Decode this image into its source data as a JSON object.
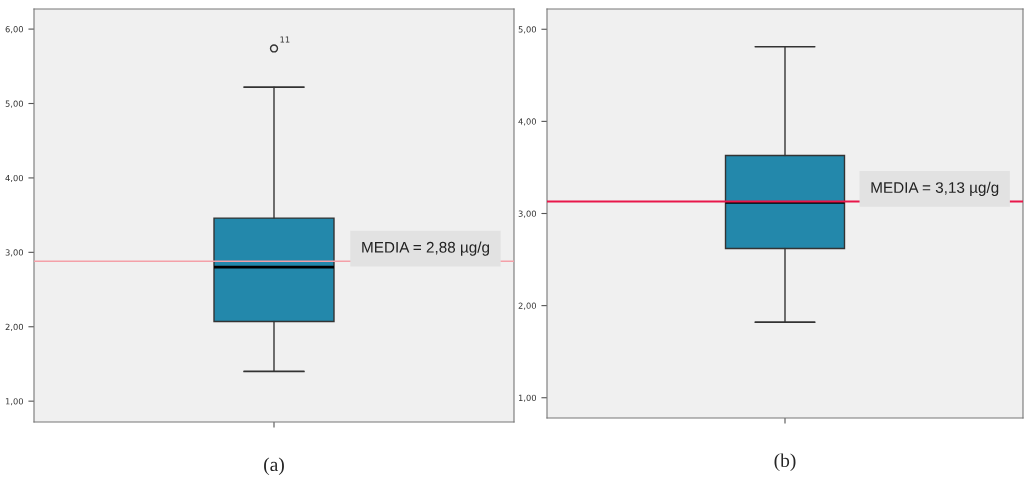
{
  "chart_data": [
    {
      "type": "box",
      "xlabel": "(a)",
      "categories": [
        null
      ],
      "color": "#2388ab",
      "boxes": [
        {
          "low": 1.4,
          "q1": 2.07,
          "median": 2.8,
          "q3": 3.46,
          "high": 5.22,
          "outliers": [
            5.74
          ]
        }
      ],
      "ylim": [
        0.72,
        6.27
      ],
      "yticks": [
        {
          "value": 1,
          "label": "1,00"
        },
        {
          "value": 2,
          "label": "2,00"
        },
        {
          "value": 3,
          "label": "3,00"
        },
        {
          "value": 4,
          "label": "4,00"
        },
        {
          "value": 5,
          "label": "5,00"
        },
        {
          "value": 6,
          "label": "6,00"
        }
      ],
      "ref_lines": [
        {
          "axis": "y",
          "value": 2.88,
          "label": "MEDIA = 2,88 µg/g",
          "color": "#f4a0a8"
        }
      ],
      "annotations": [
        "11"
      ],
      "grid": false
    },
    {
      "type": "box",
      "xlabel": "(b)",
      "categories": [
        null
      ],
      "color": "#2388ab",
      "boxes": [
        {
          "low": 1.82,
          "q1": 2.62,
          "median": 3.12,
          "q3": 3.63,
          "high": 4.81
        }
      ],
      "ylim": [
        0.78,
        5.22
      ],
      "yticks": [
        {
          "value": 1,
          "label": "1,00"
        },
        {
          "value": 2,
          "label": "2,00"
        },
        {
          "value": 3,
          "label": "3,00"
        },
        {
          "value": 4,
          "label": "4,00"
        },
        {
          "value": 5,
          "label": "5,00"
        }
      ],
      "ref_lines": [
        {
          "axis": "y",
          "value": 3.13,
          "label": "MEDIA = 3,13 µg/g",
          "color": "#e8174a"
        }
      ],
      "grid": false
    }
  ]
}
